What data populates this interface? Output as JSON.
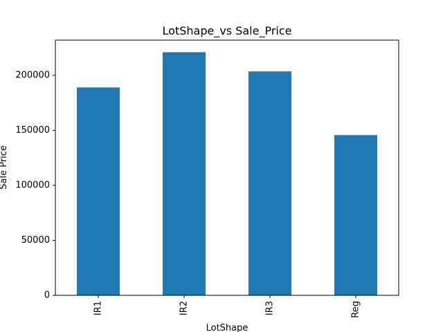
{
  "chart_data": {
    "type": "bar",
    "title": "LotShape_vs Sale_Price",
    "xlabel": "LotShape",
    "ylabel": "Sale Price",
    "categories": [
      "IR1",
      "IR2",
      "IR3",
      "Reg"
    ],
    "values": [
      189000,
      221000,
      203600,
      145700
    ],
    "ylim": [
      0,
      232000
    ],
    "yticks": [
      0,
      50000,
      100000,
      150000,
      200000
    ],
    "grid": false,
    "legend": "none",
    "bar_color": "#1f77b4"
  }
}
